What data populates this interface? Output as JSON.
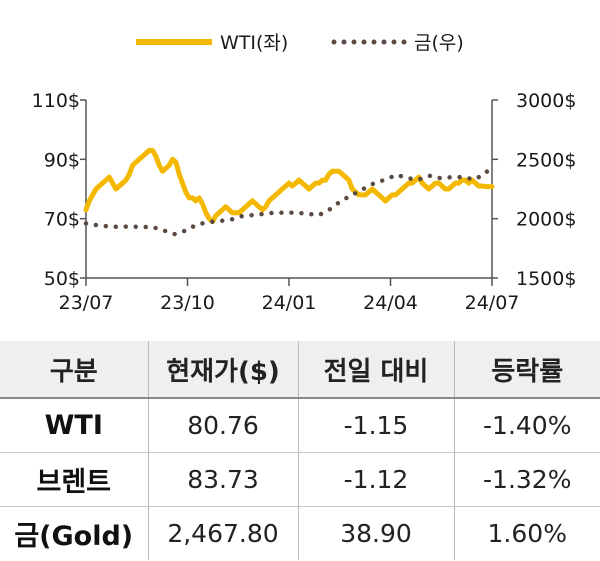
{
  "chart_data": {
    "type": "line",
    "legend": {
      "position": "top",
      "entries": [
        "WTI(좌)",
        "금(우)"
      ]
    },
    "x_ticks": [
      "23/07",
      "23/10",
      "24/01",
      "24/04",
      "24/07"
    ],
    "y_left": {
      "ticks": [
        "110$",
        "90$",
        "70$",
        "50$"
      ],
      "range": [
        50,
        110
      ]
    },
    "y_right": {
      "ticks": [
        "3000$",
        "2500$",
        "2000$",
        "1500$"
      ],
      "range": [
        1500,
        3000
      ]
    },
    "series": [
      {
        "name": "WTI(좌)",
        "axis": "left",
        "color": "#F5B800",
        "style": "solid",
        "x": [
          0,
          3,
          6,
          9,
          12,
          15,
          18,
          21,
          24,
          27,
          30,
          33,
          36,
          39,
          42,
          45,
          48,
          51,
          54,
          57,
          60,
          63,
          66,
          69,
          72,
          75,
          78,
          81,
          84,
          87,
          90,
          93,
          96,
          99,
          102,
          105,
          108,
          111,
          114,
          117,
          120,
          123,
          126,
          129,
          132,
          135,
          138,
          141,
          144,
          147,
          150,
          153,
          156,
          159,
          162,
          165,
          168,
          171,
          174,
          177,
          180,
          183,
          186,
          189,
          192,
          195,
          198,
          201,
          204,
          207,
          210,
          213,
          216,
          219,
          222,
          225,
          228,
          231,
          234,
          237,
          240,
          243,
          246,
          249,
          252,
          255,
          258,
          261,
          264,
          267,
          270,
          273,
          276,
          279,
          282,
          285,
          288,
          291,
          294,
          297,
          300,
          303,
          306,
          309,
          312,
          315,
          318,
          321,
          324,
          327,
          330,
          333,
          336,
          339,
          342,
          345,
          348,
          351,
          354,
          357,
          360,
          363,
          366
        ],
        "y": [
          73,
          76,
          78,
          80,
          81,
          82,
          83,
          84,
          82,
          80,
          81,
          82,
          83,
          85,
          88,
          89,
          90,
          91,
          92,
          93,
          93,
          91,
          88,
          86,
          87,
          88,
          90,
          89,
          85,
          82,
          79,
          77,
          77,
          76,
          77,
          75,
          72,
          70,
          69,
          71,
          72,
          73,
          74,
          73,
          72,
          72,
          72,
          73,
          74,
          75,
          76,
          75,
          74,
          73,
          74,
          76,
          77,
          78,
          79,
          80,
          81,
          82,
          81,
          82,
          83,
          82,
          81,
          80,
          81,
          82,
          82,
          83,
          83,
          85,
          86,
          86,
          86,
          85,
          84,
          83,
          80,
          79,
          78,
          78,
          78,
          79,
          80,
          79,
          78,
          77,
          76,
          77,
          78,
          78,
          79,
          80,
          81,
          82,
          82,
          83,
          84,
          82,
          81,
          80,
          81,
          82,
          82,
          81,
          80,
          80,
          81,
          82,
          82,
          83,
          83,
          82,
          83,
          82,
          81,
          81,
          80.8,
          80.8,
          80.8
        ]
      },
      {
        "name": "금(우)",
        "axis": "right",
        "color": "#5A4A42",
        "style": "dotted",
        "x": [
          0,
          10,
          20,
          30,
          40,
          50,
          60,
          70,
          80,
          90,
          100,
          110,
          120,
          130,
          140,
          150,
          160,
          170,
          180,
          190,
          200,
          210,
          220,
          230,
          240,
          250,
          260,
          270,
          280,
          290,
          300,
          310,
          320,
          330,
          340,
          350,
          360,
          366
        ],
        "y": [
          1960,
          1945,
          1935,
          1930,
          1935,
          1930,
          1930,
          1900,
          1870,
          1900,
          1950,
          1970,
          1980,
          1990,
          2020,
          2030,
          2040,
          2050,
          2050,
          2050,
          2040,
          2030,
          2080,
          2150,
          2200,
          2250,
          2300,
          2330,
          2370,
          2340,
          2330,
          2360,
          2340,
          2350,
          2350,
          2330,
          2380,
          2450
        ]
      }
    ]
  },
  "table": {
    "headers": [
      "구분",
      "현재가($)",
      "전일 대비",
      "등락률"
    ],
    "rows": [
      [
        "WTI",
        "80.76",
        "-1.15",
        "-1.40%"
      ],
      [
        "브렌트",
        "83.73",
        "-1.12",
        "-1.32%"
      ],
      [
        "금(Gold)",
        "2,467.80",
        "38.90",
        "1.60%"
      ]
    ]
  }
}
